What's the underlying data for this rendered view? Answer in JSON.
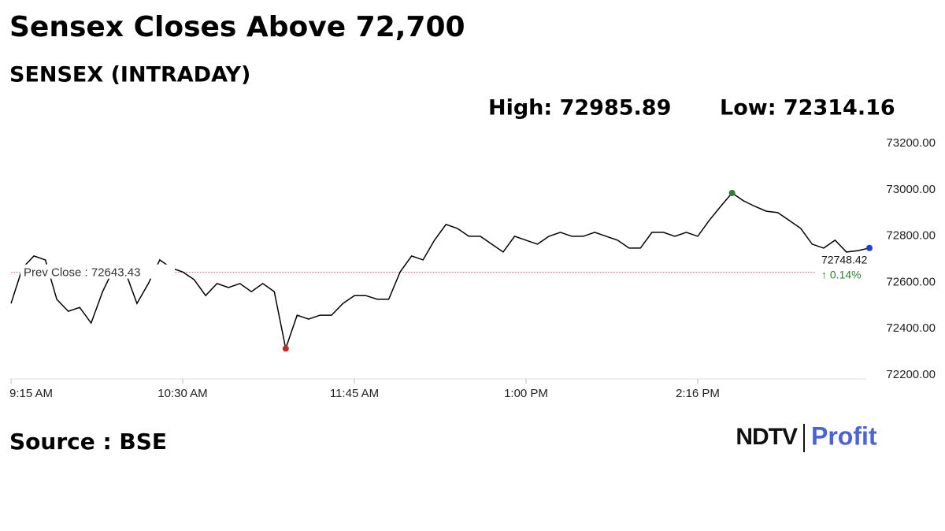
{
  "chart_data": {
    "type": "line",
    "title": "Sensex Closes Above 72,700",
    "subtitle": "SENSEX (INTRADAY)",
    "annotations": {
      "high": "High: 72985.89",
      "low": "Low: 72314.16",
      "last_label": "72748.42",
      "change_label": "↑ 0.14%"
    },
    "source": "Source : BSE",
    "logo": {
      "left": "NDTV",
      "right": "Profit"
    },
    "prev_close": {
      "label": "Prev Close : 72643.43",
      "value": 72643.43
    },
    "categories": [
      "9:15 AM",
      null,
      null,
      null,
      null,
      null,
      null,
      null,
      null,
      null,
      null,
      null,
      null,
      null,
      null,
      "10:30 AM",
      null,
      null,
      null,
      null,
      null,
      null,
      null,
      null,
      null,
      null,
      null,
      null,
      null,
      null,
      "11:45 AM",
      null,
      null,
      null,
      null,
      null,
      null,
      null,
      null,
      null,
      null,
      null,
      null,
      null,
      null,
      "1:00 PM",
      null,
      null,
      null,
      null,
      null,
      null,
      null,
      null,
      null,
      null,
      null,
      null,
      null,
      null,
      "2:16 PM",
      null,
      null,
      null,
      null,
      null,
      null,
      null,
      null,
      null,
      null,
      null,
      null,
      null,
      null,
      null
    ],
    "series": [
      {
        "name": "SENSEX",
        "color": "#000000",
        "values": [
          72509,
          72662,
          72714,
          72697,
          72527,
          72475,
          72492,
          72424,
          72560,
          72662,
          72645,
          72509,
          72595,
          72697,
          72662,
          72645,
          72612,
          72543,
          72595,
          72578,
          72595,
          72560,
          72595,
          72560,
          72314.16,
          72458,
          72441,
          72458,
          72458,
          72509,
          72543,
          72543,
          72527,
          72527,
          72645,
          72714,
          72697,
          72782,
          72850,
          72833,
          72799,
          72799,
          72765,
          72731,
          72799,
          72782,
          72765,
          72799,
          72816,
          72799,
          72799,
          72816,
          72799,
          72782,
          72748,
          72748,
          72816,
          72816,
          72799,
          72816,
          72799,
          72867,
          72928,
          72985.89,
          72952,
          72928,
          72907,
          72901,
          72867,
          72833,
          72765,
          72748,
          72782,
          72731,
          72737,
          72748.42
        ]
      }
    ],
    "high_index": 63,
    "low_index": 24,
    "ylim": [
      72200,
      73200
    ],
    "yticks": [
      {
        "value": 72200,
        "label": "72200.00"
      },
      {
        "value": 72400,
        "label": "72400.00"
      },
      {
        "value": 72600,
        "label": "72600.00"
      },
      {
        "value": 72800,
        "label": "72800.00"
      },
      {
        "value": 73000,
        "label": "73000.00"
      },
      {
        "value": 73200,
        "label": "73200.00"
      }
    ],
    "grid": false
  }
}
